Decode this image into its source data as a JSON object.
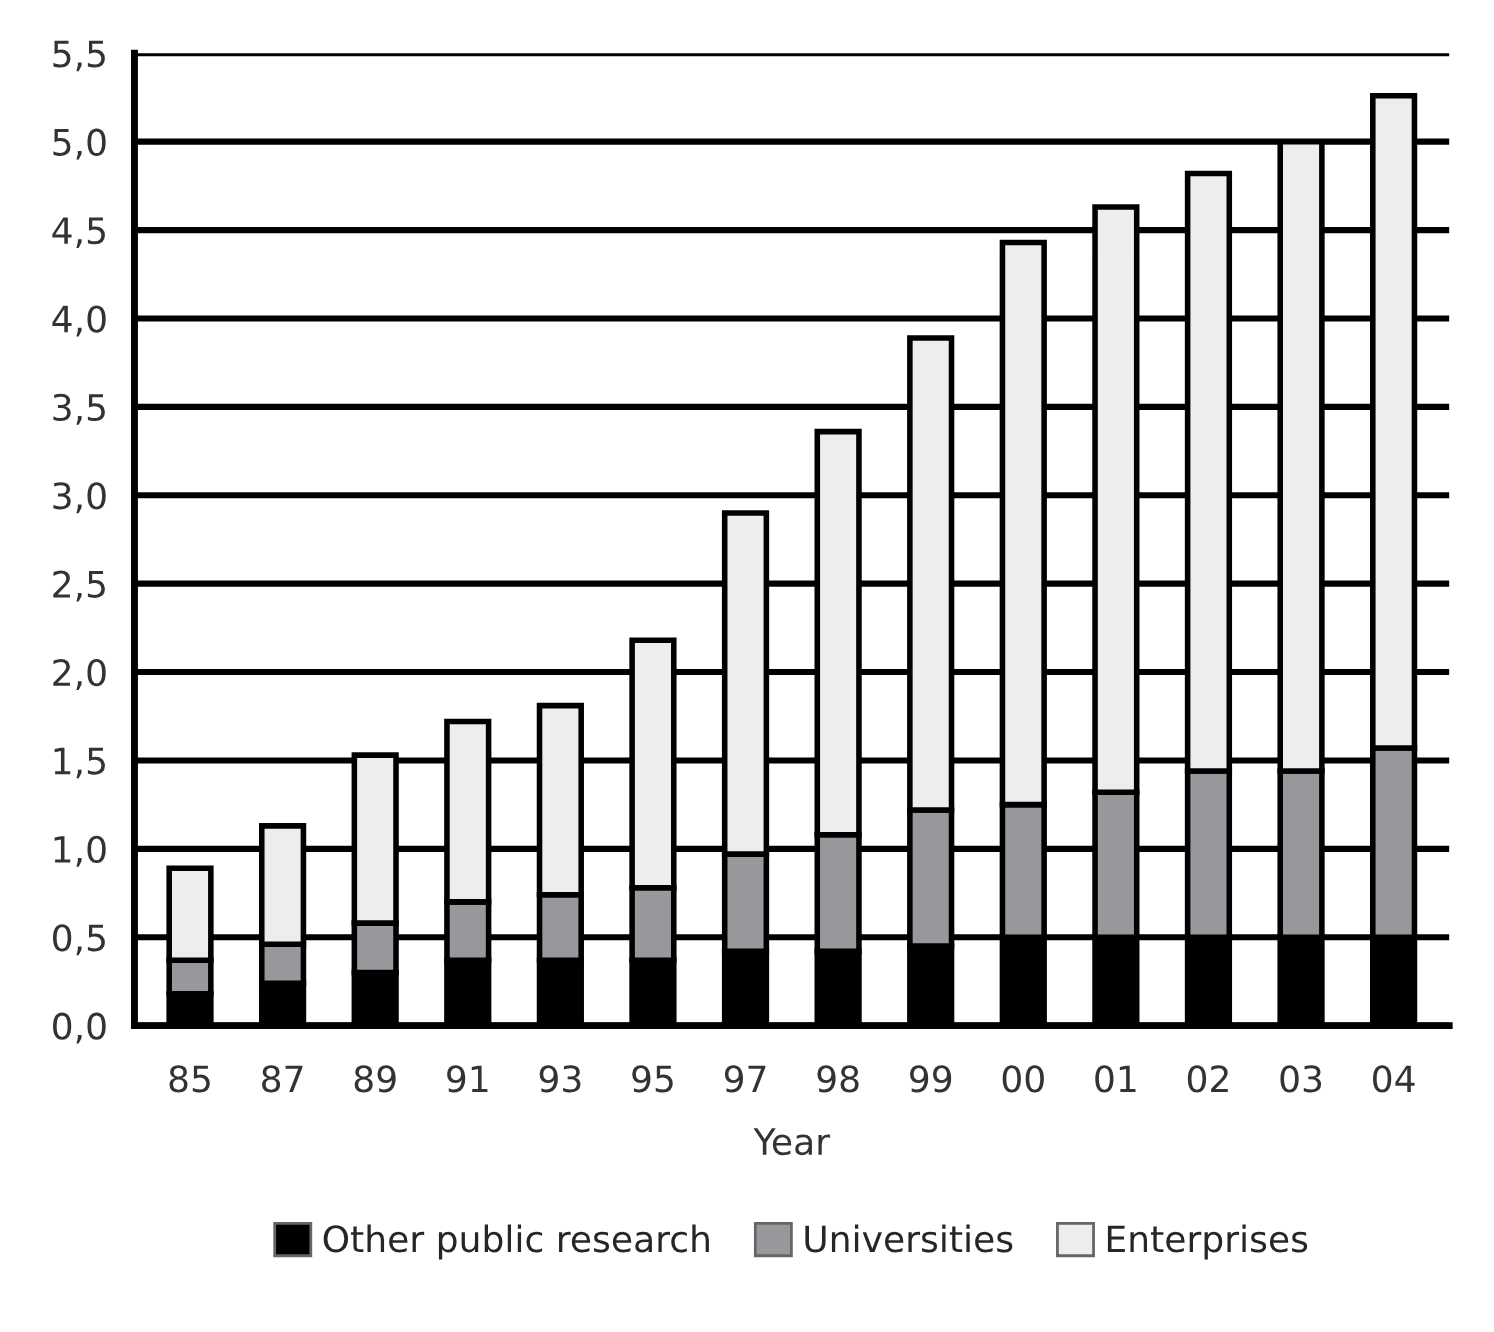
{
  "chart_data": {
    "type": "bar",
    "stacked": true,
    "xlabel": "Year",
    "categories": [
      "85",
      "87",
      "89",
      "91",
      "93",
      "95",
      "97",
      "98",
      "99",
      "00",
      "01",
      "02",
      "03",
      "04"
    ],
    "series": [
      {
        "name": "Other public research",
        "color": "#000000",
        "values": [
          0.18,
          0.24,
          0.3,
          0.37,
          0.37,
          0.37,
          0.42,
          0.42,
          0.45,
          0.5,
          0.5,
          0.5,
          0.5,
          0.5
        ]
      },
      {
        "name": "Universities",
        "color": "#98989c",
        "values": [
          0.19,
          0.22,
          0.28,
          0.33,
          0.37,
          0.41,
          0.55,
          0.66,
          0.77,
          0.75,
          0.82,
          0.94,
          0.94,
          1.07
        ]
      },
      {
        "name": "Enterprises",
        "color": "#ecedee",
        "values": [
          0.52,
          0.67,
          0.95,
          1.02,
          1.07,
          1.4,
          1.93,
          2.28,
          2.67,
          3.18,
          3.31,
          3.38,
          3.56,
          3.69
        ]
      }
    ],
    "ylim": [
      0,
      5.5
    ],
    "yticks": [
      {
        "value": 0,
        "label": "0,0"
      },
      {
        "value": 0.5,
        "label": "0,5"
      },
      {
        "value": 1,
        "label": "1,0"
      },
      {
        "value": 1.5,
        "label": "1,5"
      },
      {
        "value": 2,
        "label": "2,0"
      },
      {
        "value": 2.5,
        "label": "2,5"
      },
      {
        "value": 3,
        "label": "3,0"
      },
      {
        "value": 3.5,
        "label": "3,5"
      },
      {
        "value": 4,
        "label": "4,0"
      },
      {
        "value": 4.5,
        "label": "4,5"
      },
      {
        "value": 5,
        "label": "5,0"
      },
      {
        "value": 5.5,
        "label": "5,5"
      }
    ],
    "grid": "y",
    "legend": "bottom"
  }
}
